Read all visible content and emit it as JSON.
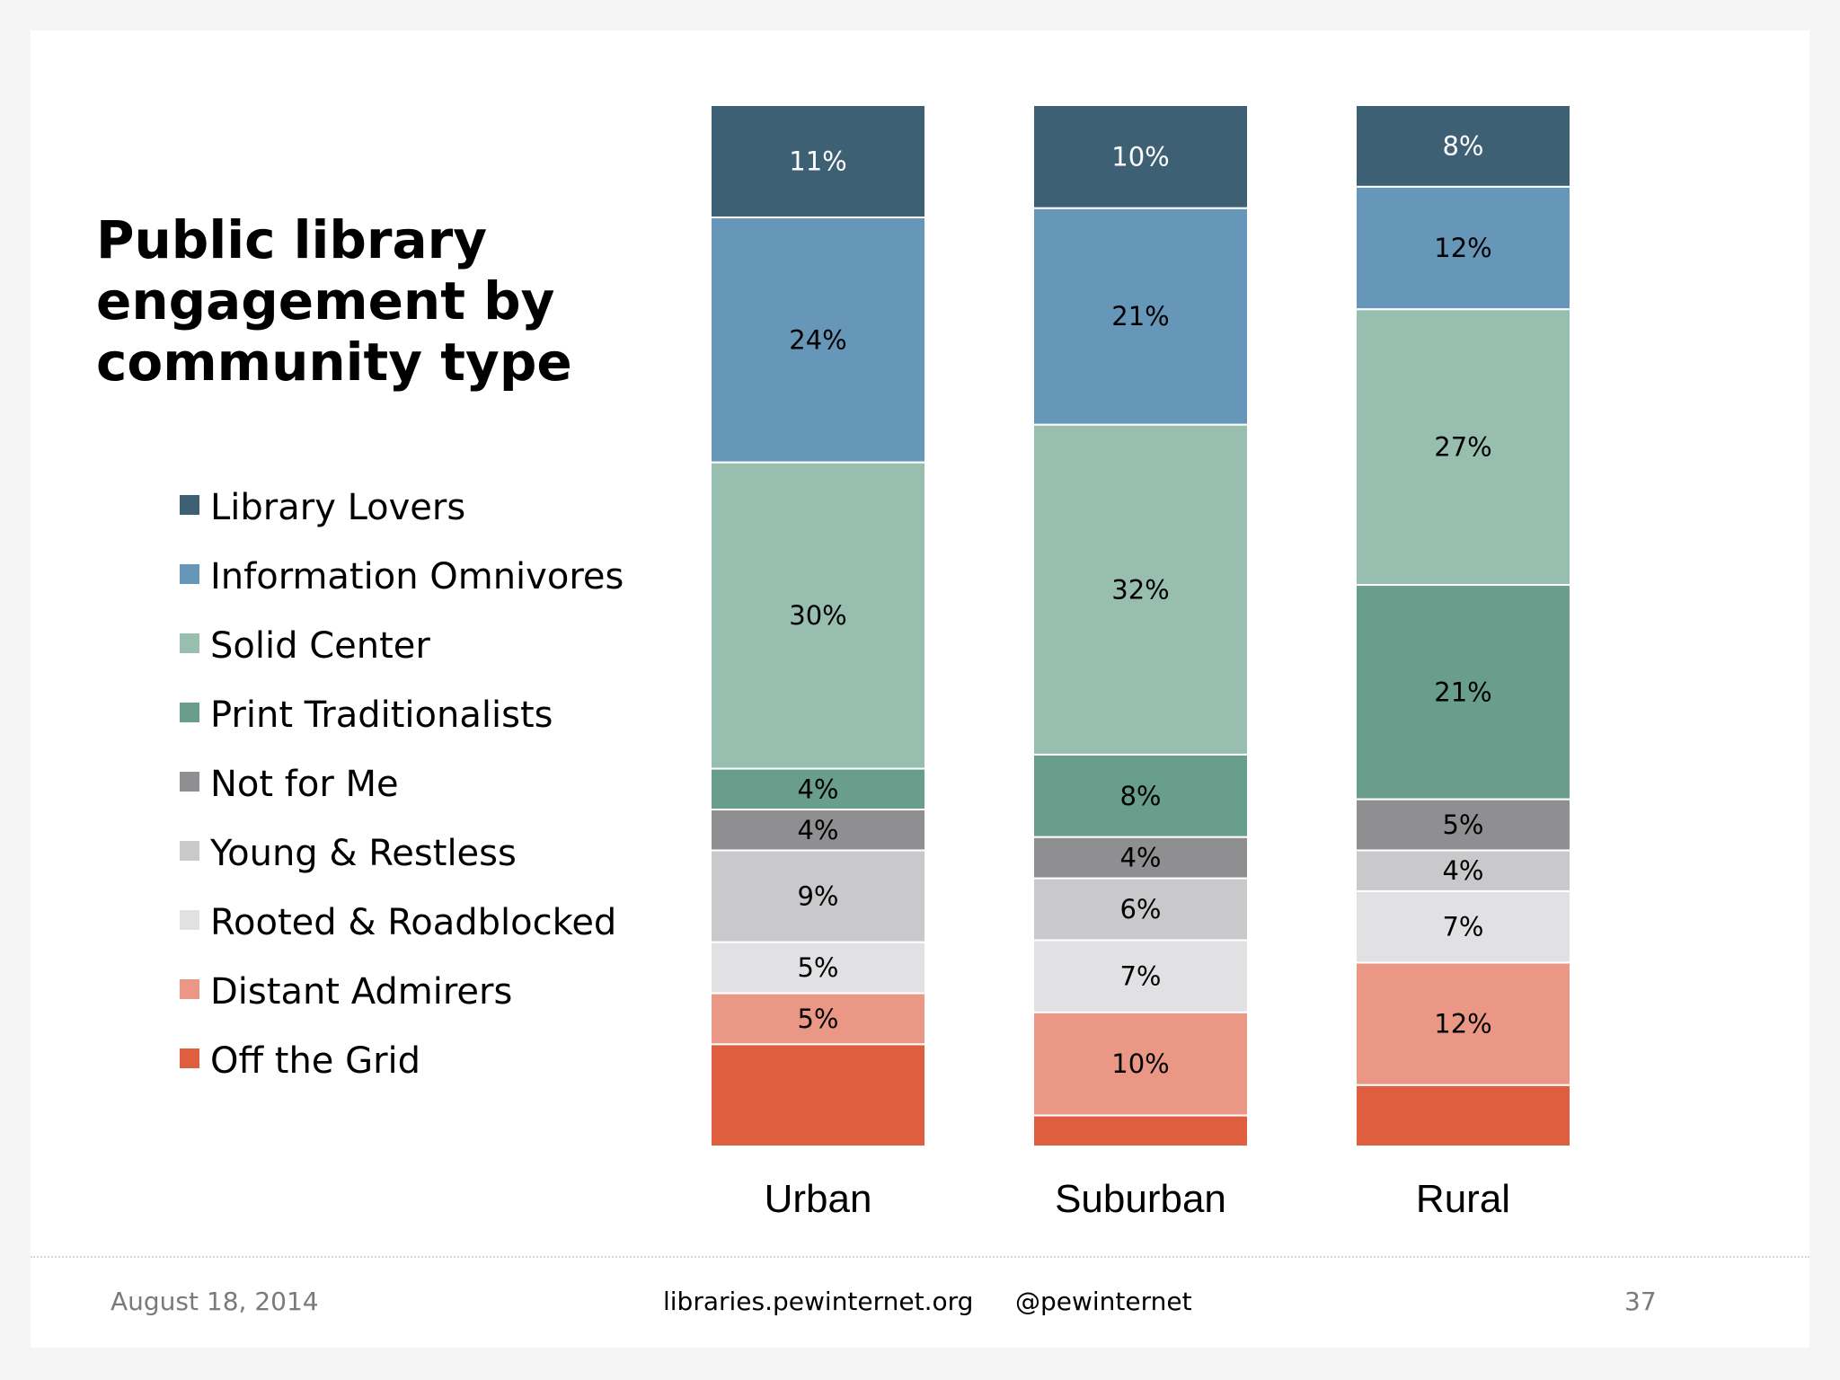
{
  "footer": {
    "date": "August 18, 2014",
    "site": "libraries.pewinternet.org",
    "handle": "@pewinternet",
    "page_number": "37"
  },
  "chart_data": {
    "type": "bar",
    "stacked": true,
    "orientation": "vertical",
    "title": "Public library engagement by community type",
    "xlabel": "",
    "ylabel": "",
    "ylim": [
      0,
      100
    ],
    "grid": false,
    "legend_placement": "left",
    "categories": [
      "Urban",
      "Suburban",
      "Rural"
    ],
    "series": [
      {
        "name": "Library Lovers",
        "color": "#3e6075",
        "values": [
          11,
          10,
          8
        ],
        "labels": [
          "11%",
          "10%",
          "8%"
        ],
        "label_color": "#ffffff"
      },
      {
        "name": "Information Omnivores",
        "color": "#6797b8",
        "values": [
          24,
          21,
          12
        ],
        "labels": [
          "24%",
          "21%",
          "12%"
        ],
        "label_color": "#000000"
      },
      {
        "name": "Solid Center",
        "color": "#98beb0",
        "values": [
          30,
          32,
          27
        ],
        "labels": [
          "30%",
          "32%",
          "27%"
        ],
        "label_color": "#000000"
      },
      {
        "name": "Print Traditionalists",
        "color": "#689e8b",
        "values": [
          4,
          8,
          21
        ],
        "labels": [
          "4%",
          "8%",
          "21%"
        ],
        "label_color": "#000000"
      },
      {
        "name": "Not for Me",
        "color": "#8f8f91",
        "values": [
          4,
          4,
          5
        ],
        "labels": [
          "4%",
          "4%",
          "5%"
        ],
        "label_color": "#000000"
      },
      {
        "name": "Young & Restless",
        "color": "#c9c8ca",
        "values": [
          9,
          6,
          4
        ],
        "labels": [
          "9%",
          "6%",
          "4%"
        ],
        "label_color": "#000000"
      },
      {
        "name": "Rooted & Roadblocked",
        "color": "#e1e0e2",
        "values": [
          5,
          7,
          7
        ],
        "labels": [
          "5%",
          "7%",
          "7%"
        ],
        "label_color": "#000000"
      },
      {
        "name": "Distant Admirers",
        "color": "#ea9885",
        "values": [
          5,
          10,
          12
        ],
        "labels": [
          "5%",
          "10%",
          "12%"
        ],
        "label_color": "#000000"
      },
      {
        "name": "Off the Grid",
        "color": "#de5e3f",
        "values": [
          10,
          3,
          6
        ],
        "labels": [
          "",
          "",
          ""
        ],
        "label_color": "#000000"
      }
    ]
  }
}
